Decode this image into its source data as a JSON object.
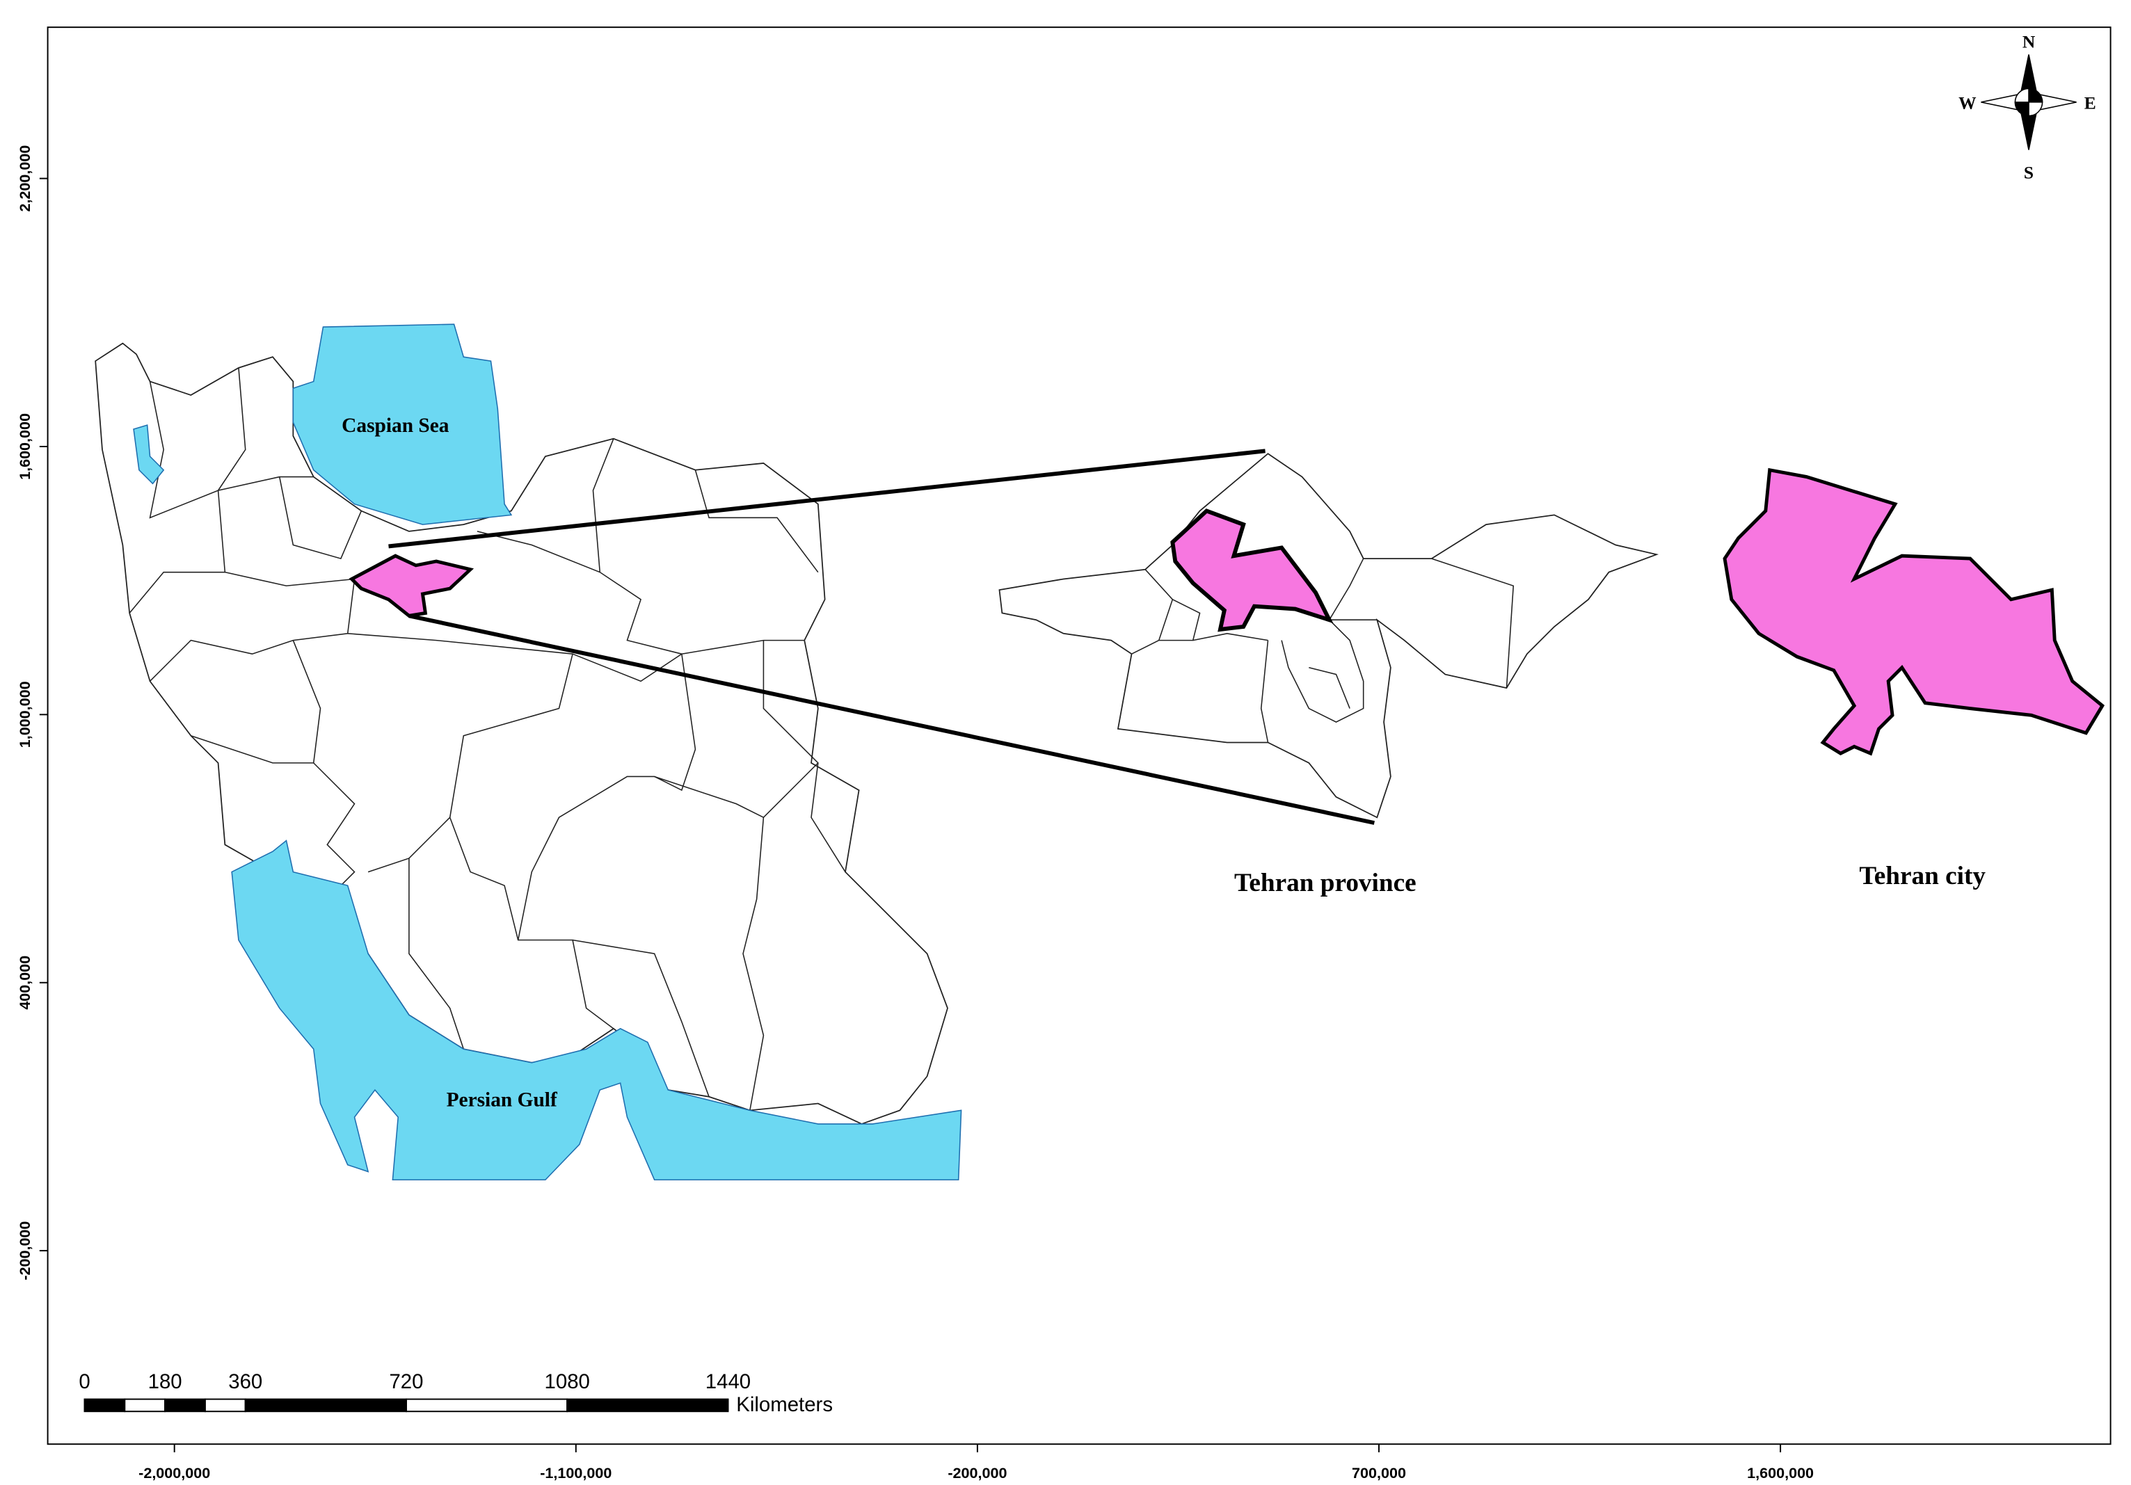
{
  "map": {
    "labels": {
      "caspian": "Caspian Sea",
      "gulf": "Persian Gulf",
      "province": "Tehran province",
      "city": "Tehran city"
    },
    "compass": {
      "n": "N",
      "e": "E",
      "s": "S",
      "w": "W"
    },
    "scale_bar": {
      "ticks": [
        0,
        180,
        360,
        720,
        1080,
        1440
      ],
      "unit": "Kilometers"
    },
    "x_axis": {
      "range": [
        -2284000,
        2340000
      ],
      "ticks": [
        {
          "value": -2000000,
          "label": "-2,000,000"
        },
        {
          "value": -1100000,
          "label": "-1,100,000"
        },
        {
          "value": -200000,
          "label": "-200,000"
        },
        {
          "value": 700000,
          "label": "700,000"
        },
        {
          "value": 1600000,
          "label": "1,600,000"
        }
      ]
    },
    "y_axis": {
      "range": [
        -633000,
        2538500
      ],
      "ticks": [
        {
          "value": -200000,
          "label": "-200,000"
        },
        {
          "value": 400000,
          "label": "400,000"
        },
        {
          "value": 1000000,
          "label": "1,000,000"
        },
        {
          "value": 1600000,
          "label": "1,600,000"
        },
        {
          "value": 2200000,
          "label": "2,200,000"
        }
      ]
    }
  }
}
